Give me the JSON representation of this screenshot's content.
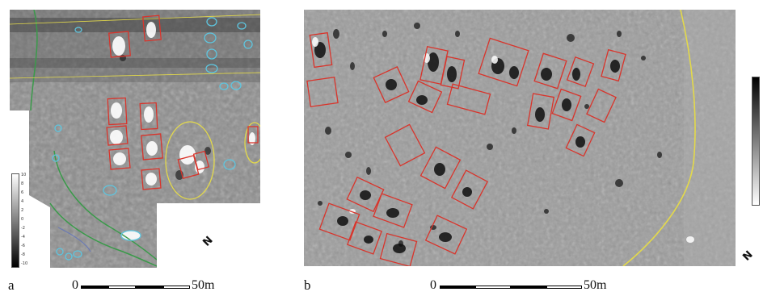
{
  "panel_a": {
    "label": "a",
    "scale": {
      "start": "0",
      "end": "50m"
    },
    "legend_ticks": [
      "10",
      "8",
      "6",
      "4",
      "2",
      "0",
      "-2",
      "-4",
      "-6",
      "-8",
      "-10"
    ],
    "north": "N"
  },
  "panel_b": {
    "label": "b",
    "scale": {
      "start": "0",
      "end": "50m"
    },
    "north": "N"
  },
  "colors": {
    "feature_box": "#d9342b",
    "pit_outline": "#5ec6e0",
    "boundary_line": "#e3d94a",
    "ditch_line": "#3a9a4a"
  }
}
